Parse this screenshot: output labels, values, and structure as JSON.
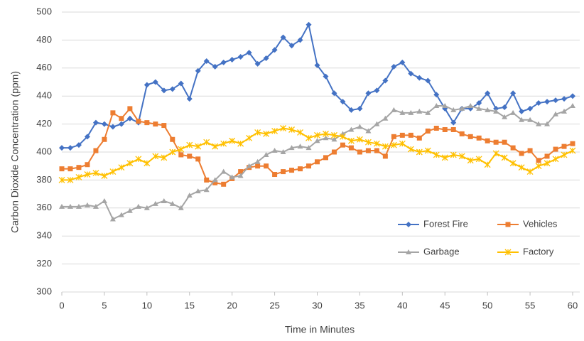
{
  "chart_data": {
    "type": "line",
    "ylabel": "Carbon Dioxide Concentration (ppm)",
    "xlabel": "Time in Minutes",
    "x": [
      0,
      1,
      2,
      3,
      4,
      5,
      6,
      7,
      8,
      9,
      10,
      11,
      12,
      13,
      14,
      15,
      16,
      17,
      18,
      19,
      20,
      21,
      22,
      23,
      24,
      25,
      26,
      27,
      28,
      29,
      30,
      31,
      32,
      33,
      34,
      35,
      36,
      37,
      38,
      39,
      40,
      41,
      42,
      43,
      44,
      45,
      46,
      47,
      48,
      49,
      50,
      51,
      52,
      53,
      54,
      55,
      56,
      57,
      58,
      59,
      60
    ],
    "xlim": [
      0,
      60
    ],
    "xticks": [
      0,
      5,
      10,
      15,
      20,
      25,
      30,
      35,
      40,
      45,
      50,
      55,
      60
    ],
    "ylim": [
      300,
      500
    ],
    "yticks": [
      300,
      320,
      340,
      360,
      380,
      400,
      420,
      440,
      460,
      480,
      500
    ],
    "grid": true,
    "legend": "lower right",
    "series": [
      {
        "name": "Forest Fire",
        "color": "#4472c4",
        "marker": "diamond",
        "values": [
          403,
          403,
          405,
          411,
          421,
          420,
          418,
          420,
          424,
          421,
          448,
          450,
          444,
          445,
          449,
          438,
          458,
          465,
          461,
          464,
          466,
          468,
          471,
          463,
          467,
          473,
          482,
          476,
          480,
          491,
          462,
          454,
          442,
          436,
          430,
          431,
          442,
          444,
          451,
          461,
          464,
          456,
          453,
          451,
          441,
          431,
          421,
          431,
          431,
          435,
          442,
          431,
          432,
          442,
          429,
          431,
          435,
          436,
          437,
          438,
          440
        ]
      },
      {
        "name": "Vehicles",
        "color": "#ed7d31",
        "marker": "square",
        "values": [
          388,
          388,
          389,
          391,
          401,
          409,
          428,
          424,
          431,
          422,
          421,
          420,
          419,
          409,
          398,
          397,
          395,
          380,
          378,
          377,
          381,
          386,
          389,
          390,
          390,
          384,
          386,
          387,
          388,
          390,
          393,
          396,
          400,
          405,
          403,
          400,
          401,
          401,
          397,
          411,
          412,
          412,
          410,
          415,
          417,
          416,
          416,
          413,
          411,
          410,
          408,
          407,
          407,
          403,
          399,
          401,
          394,
          397,
          402,
          404,
          406
        ]
      },
      {
        "name": "Garbage",
        "color": "#a5a5a5",
        "marker": "triangle",
        "values": [
          361,
          361,
          361,
          362,
          361,
          365,
          352,
          355,
          358,
          361,
          360,
          363,
          365,
          363,
          360,
          369,
          372,
          373,
          380,
          386,
          382,
          383,
          390,
          393,
          398,
          401,
          400,
          403,
          404,
          403,
          408,
          410,
          409,
          413,
          416,
          418,
          415,
          420,
          424,
          430,
          428,
          428,
          429,
          428,
          433,
          433,
          430,
          431,
          433,
          431,
          430,
          429,
          425,
          428,
          423,
          423,
          420,
          420,
          427,
          429,
          433
        ]
      },
      {
        "name": "Factory",
        "color": "#ffc000",
        "marker": "cross",
        "values": [
          380,
          380,
          382,
          384,
          385,
          383,
          386,
          389,
          392,
          395,
          392,
          397,
          396,
          400,
          402,
          405,
          404,
          407,
          404,
          406,
          408,
          406,
          410,
          414,
          413,
          415,
          417,
          416,
          414,
          410,
          412,
          413,
          412,
          411,
          408,
          409,
          407,
          406,
          404,
          405,
          406,
          402,
          400,
          401,
          398,
          396,
          398,
          397,
          394,
          395,
          391,
          399,
          396,
          392,
          389,
          386,
          390,
          392,
          395,
          398,
          401
        ]
      }
    ]
  }
}
